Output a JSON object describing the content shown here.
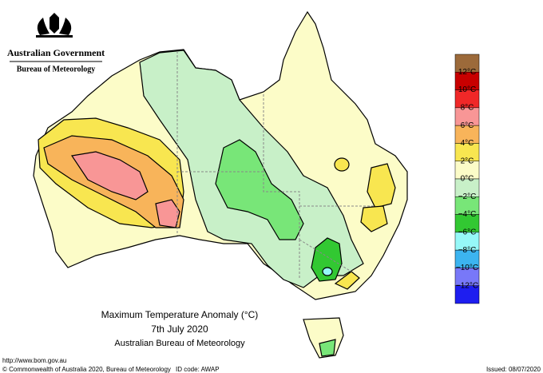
{
  "header": {
    "government": "Australian Government",
    "bureau": "Bureau of Meteorology"
  },
  "map": {
    "title": "Maximum Temperature Anomaly (°C)",
    "date": "7th July 2020",
    "source": "Australian Bureau of Meteorology"
  },
  "legend": {
    "colors": [
      "#9c6a3a",
      "#c80000",
      "#f02828",
      "#f89696",
      "#f8b45a",
      "#f8e650",
      "#fcfcc8",
      "#c8f0c8",
      "#78e678",
      "#32c832",
      "#96f8f8",
      "#3cb4f0",
      "#7878f8",
      "#1e1ef0"
    ],
    "labels": [
      "12°C",
      "10°C",
      "8°C",
      "6°C",
      "4°C",
      "2°C",
      "0°C",
      "−2°C",
      "−4°C",
      "−6°C",
      "−8°C",
      "−10°C",
      "−12°C"
    ]
  },
  "footer": {
    "url": "http://www.bom.gov.au",
    "copyright": "© Commonwealth of Australia 2020, Bureau of Meteorology",
    "id": "ID code: AWAP",
    "issued": "Issued: 08/07/2020"
  }
}
